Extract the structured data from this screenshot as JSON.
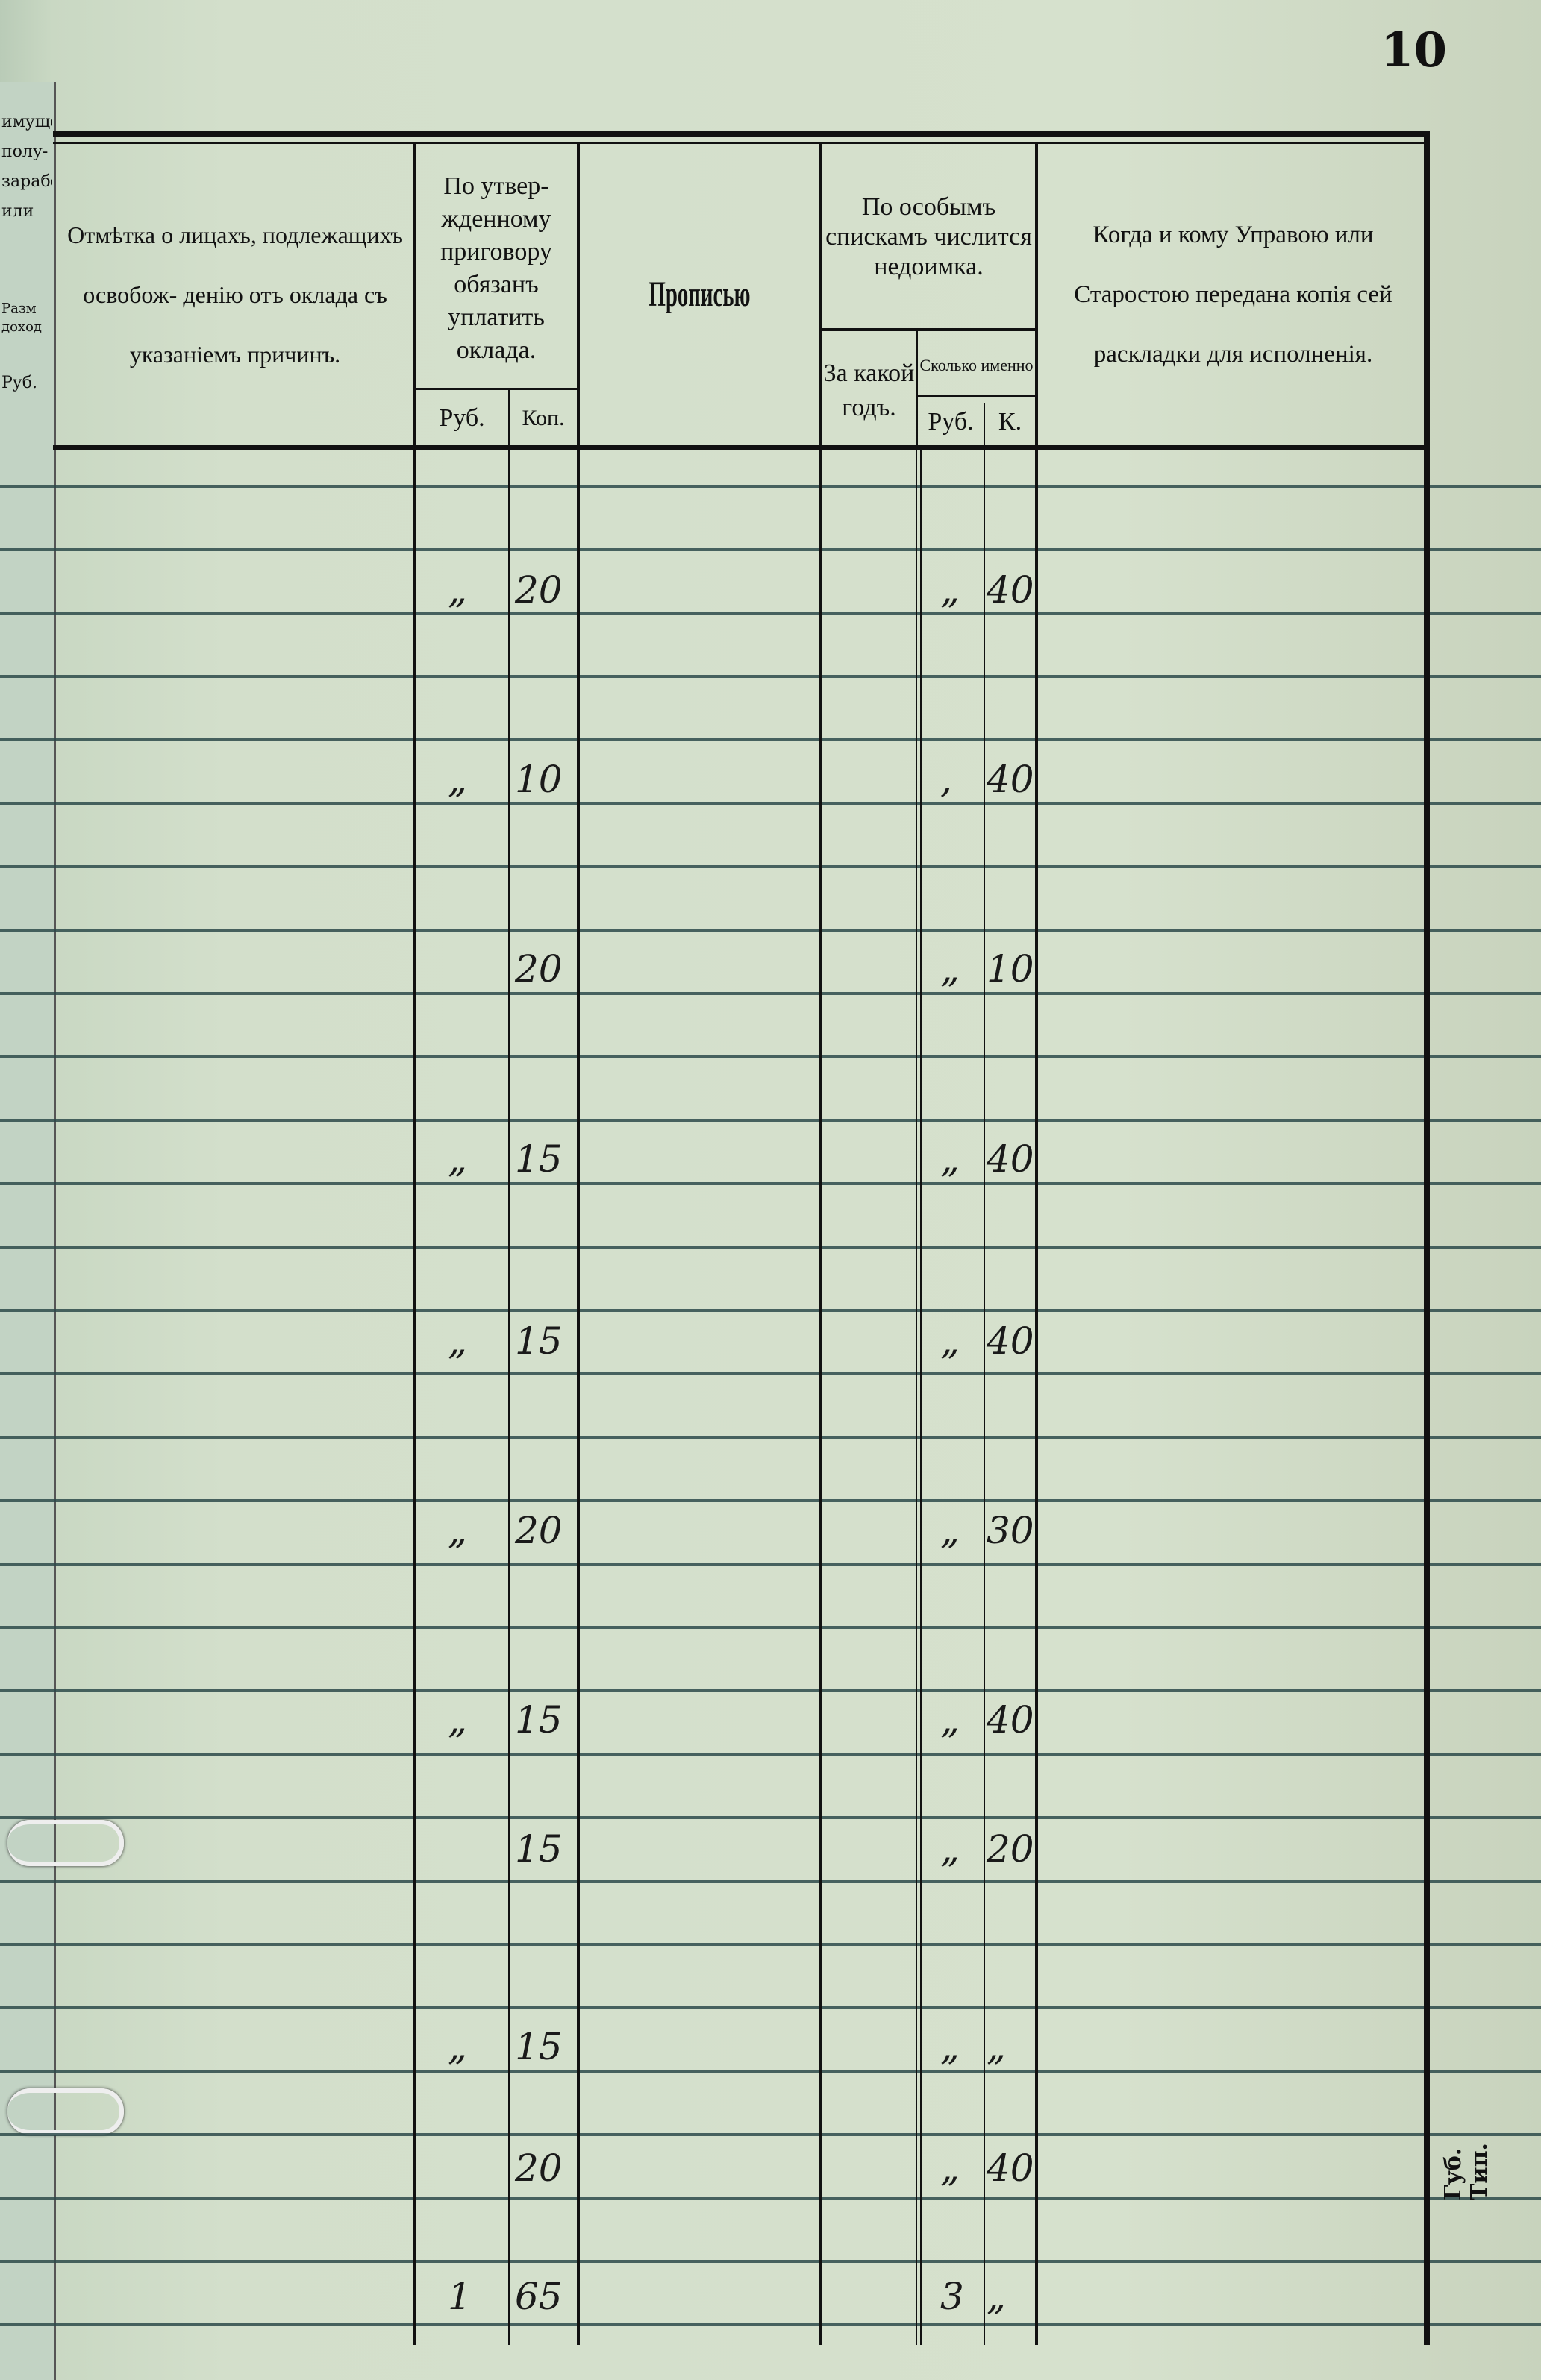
{
  "page_number": "10",
  "left_page_fragments": [
    "имуще",
    "полу-",
    "зарабо",
    "или",
    "Разм",
    "доход",
    "Руб."
  ],
  "header": {
    "col_exempt": "Отмѣтка о лицахъ, подлежащихъ освобож- денію отъ оклада съ указаніемъ причинъ.",
    "col_obliged": "По утвер- жденному приговору обязанъ уплатить оклада.",
    "col_obliged_rub": "Руб.",
    "col_obliged_kop": "Коп.",
    "col_words": "Прописью",
    "col_arrears": "По особымъ спискамъ числится недоимка.",
    "col_arrears_year": "За какой годъ.",
    "col_arrears_amount": "Сколько именно",
    "col_arrears_rub": "Руб.",
    "col_arrears_k": "К.",
    "col_when": "Когда и кому Управою или Старостою передана копія сей раскладки для исполненія."
  },
  "rows": [
    {
      "rub": "„",
      "kop": "20",
      "arr_rub": "„",
      "arr_k": "40"
    },
    {
      "rub": "„",
      "kop": "10",
      "arr_rub": ",",
      "arr_k": "40"
    },
    {
      "rub": "",
      "kop": "20",
      "arr_rub": "„",
      "arr_k": "10"
    },
    {
      "rub": "„",
      "kop": "15",
      "arr_rub": "„",
      "arr_k": "40"
    },
    {
      "rub": "„",
      "kop": "15",
      "arr_rub": "„",
      "arr_k": "40"
    },
    {
      "rub": "„",
      "kop": "20",
      "arr_rub": "„",
      "arr_k": "30"
    },
    {
      "rub": "„",
      "kop": "15",
      "arr_rub": "„",
      "arr_k": "40"
    },
    {
      "rub": "",
      "kop": "15",
      "arr_rub": "„",
      "arr_k": "20"
    },
    {
      "rub": "„",
      "kop": "15",
      "arr_rub": "„",
      "arr_k": "„"
    },
    {
      "rub": "",
      "kop": "20",
      "arr_rub": "„",
      "arr_k": "40"
    },
    {
      "rub": "1",
      "kop": "65",
      "arr_rub": "3",
      "arr_k": "„"
    }
  ],
  "printer_mark": "Губ. Тип."
}
